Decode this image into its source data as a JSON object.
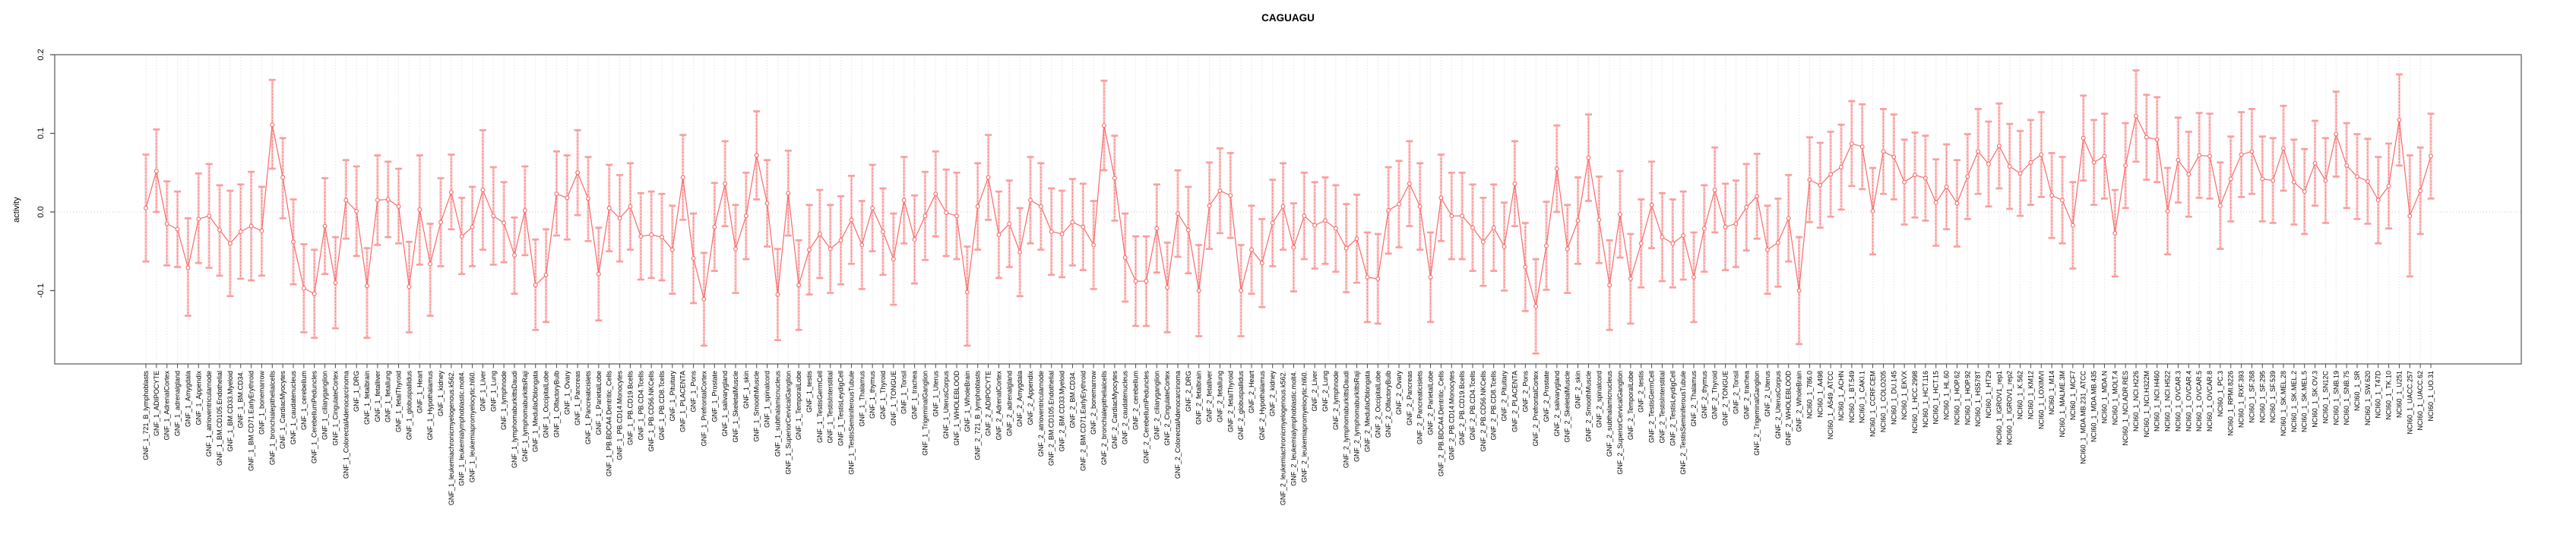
{
  "figure": {
    "title": "CAGUAGU",
    "ylabel": "activity"
  },
  "colors": {
    "series": "#f96a6a",
    "error_bar_line": "#f87878",
    "error_bar_cap": "#fb9d9d",
    "error_band": "rgba(250,130,130,0.40)",
    "grid": "#dcdcdc",
    "zero_line": "#cdcdcd",
    "box": "#808080",
    "tick": "#4a4a4a",
    "text": "#000000"
  },
  "chart_data": {
    "type": "line",
    "title": "CAGUAGU",
    "xlabel": "",
    "ylabel": "activity",
    "ylim": [
      -0.193,
      0.2
    ],
    "yticks": [
      0.2,
      0.1,
      0.0,
      -0.1
    ],
    "grid": "vertical dotted line per category plus dotted zero line",
    "legend_position": "none",
    "marker": "open-circle",
    "error_bars": true,
    "categories": [
      "GNF_1_721_B_lymphoblasts",
      "GNF_1_ADIPOCYTE",
      "GNF_1_AdrenalCortex",
      "GNF_1_adrenalgland",
      "GNF_1_Amygdala",
      "GNF_1_Appendix",
      "GNF_1_atrioventricularnode",
      "GNF_1_BM.CD105.Endothelial",
      "GNF_1_BM.CD33.Myeloid",
      "GNF_1_BM.CD34.",
      "GNF_1_BM.CD71.EarlyErythroid",
      "GNF_1_bonemarrow",
      "GNF_1_bronchialepithelialcells",
      "GNF_1_CardiacMyocytes",
      "GNF_1_caudatenucleus",
      "GNF_1_cerebellum",
      "GNF_1_CerebellumPeduncles",
      "GNF_1_ciliaryganglion",
      "GNF_1_CingulateCortex",
      "GNF_1_ColorectalAdenocarcinoma",
      "GNF_1_DRG",
      "GNF_1_fetalbrain",
      "GNF_1_fetalliver",
      "GNF_1_fetallung",
      "GNF_1_fetalThyroid",
      "GNF_1_globuspallidus",
      "GNF_1_Heart",
      "GNF_1_Hypothalamus",
      "GNF_1_kidney",
      "GNF_1_leukemiachronicmyelogenous.k562.",
      "GNF_1_leukemialymphoblastic.molt4.",
      "GNF_1_leukemiapromyelocytic.hl60.",
      "GNF_1_Liver",
      "GNF_1_Lung",
      "GNF_1_lymphnode",
      "GNF_1_lymphomaburkittsDaudi",
      "GNF_1_lymphomaburkittsRaji",
      "GNF_1_MedullaOblongata",
      "GNF_1_OccipitalLobe",
      "GNF_1_OlfactoryBulb",
      "GNF_1_Ovary",
      "GNF_1_Pancreas",
      "GNF_1_Pancreaticislets",
      "GNF_1_ParietalLobe",
      "GNF_1_PB.BDCA4.Dentritic_Cells",
      "GNF_1_PB.CD14.Monocytes",
      "GNF_1_PB.CD19.Bcells",
      "GNF_1_PB.CD4.Tcells",
      "GNF_1_PB.CD56.NKCells",
      "GNF_1_PB.CD8.Tcells",
      "GNF_1_Pituitary",
      "GNF_1_PLACENTA",
      "GNF_1_Pons",
      "GNF_1_PrefrontalCortex",
      "GNF_1_Prostate",
      "GNF_1_salivarygland",
      "GNF_1_SkeletalMuscle",
      "GNF_1_skin",
      "GNF_1_SmoothMuscle",
      "GNF_1_spinalcord",
      "GNF_1_subthalamicnucleus",
      "GNF_1_SuperiorCervicalGanglion",
      "GNF_1_TemporalLobe",
      "GNF_1_testis",
      "GNF_1_TestisGermCell",
      "GNF_1_TestisInterstitial",
      "GNF_1_TestisLeydigCell",
      "GNF_1_TestisSeminiferousTubule",
      "GNF_1_Thalamus",
      "GNF_1_thymus",
      "GNF_1_Thyroid",
      "GNF_1_TONGUE",
      "GNF_1_Tonsil",
      "GNF_1_trachea",
      "GNF_1_TrigeminalGanglion",
      "GNF_1_Uterus",
      "GNF_1_UterusCorpus",
      "GNF_1_WHOLEBLOOD",
      "GNF_1_WholeBrain",
      "GNF_2_721_B_lymphoblasts",
      "GNF_2_ADIPOCYTE",
      "GNF_2_AdrenalCortex",
      "GNF_2_adrenalgland",
      "GNF_2_Amygdala",
      "GNF_2_Appendix",
      "GNF_2_atrioventricularnode",
      "GNF_2_BM.CD105.Endothelial",
      "GNF_2_BM.CD33.Myeloid",
      "GNF_2_BM.CD34.",
      "GNF_2_BM.CD71.EarlyErythroid",
      "GNF_2_bonemarrow",
      "GNF_2_bronchialepithelialcells",
      "GNF_2_CardiacMyocytes",
      "GNF_2_caudatenucleus",
      "GNF_2_cerebellum",
      "GNF_2_CerebellumPeduncles",
      "GNF_2_ciliaryganglion",
      "GNF_2_CingulateCortex",
      "GNF_2_ColorectalAdenocarcinoma",
      "GNF_2_DRG",
      "GNF_2_fetalbrain",
      "GNF_2_fetalliver",
      "GNF_2_fetallung",
      "GNF_2_fetalThyroid",
      "GNF_2_globuspallidus",
      "GNF_2_Heart",
      "GNF_2_Hypothalamus",
      "GNF_2_kidney",
      "GNF_2_leukemiachronicmyelogenous.k562.",
      "GNF_2_leukemialymphoblastic.molt4.",
      "GNF_2_leukemiapromyelocytic.hl60.",
      "GNF_2_Liver",
      "GNF_2_Lung",
      "GNF_2_lymphnode",
      "GNF_2_lymphomaburkittsDaudi",
      "GNF_2_lymphomaburkittsRaji",
      "GNF_2_MedullaOblongata",
      "GNF_2_OccipitalLobe",
      "GNF_2_OlfactoryBulb",
      "GNF_2_Ovary",
      "GNF_2_Pancreas",
      "GNF_2_Pancreaticislets",
      "GNF_2_ParietalLobe",
      "GNF_2_PB.BDCA4.Dentritic_Cells",
      "GNF_2_PB.CD14.Monocytes",
      "GNF_2_PB.CD19.Bcells",
      "GNF_2_PB.CD4.Tcells",
      "GNF_2_PB.CD56.NKCells",
      "GNF_2_PB.CD8.Tcells",
      "GNF_2_Pituitary",
      "GNF_2_PLACENTA",
      "GNF_2_Pons",
      "GNF_2_PrefrontalCortex",
      "GNF_2_Prostate",
      "GNF_2_salivarygland",
      "GNF_2_SkeletalMuscle",
      "GNF_2_skin",
      "GNF_2_SmoothMuscle",
      "GNF_2_spinalcord",
      "GNF_2_subthalamicnucleus",
      "GNF_2_SuperiorCervicalGanglion",
      "GNF_2_TemporalLobe",
      "GNF_2_testis",
      "GNF_2_TestisGermCell",
      "GNF_2_TestisInterstitial",
      "GNF_2_TestisLeydigCell",
      "GNF_2_TestisSeminiferousTubule",
      "GNF_2_Thalamus",
      "GNF_2_thymus",
      "GNF_2_Thyroid",
      "GNF_2_TONGUE",
      "GNF_2_Tonsil",
      "GNF_2_trachea",
      "GNF_2_TrigeminalGanglion",
      "GNF_2_Uterus",
      "GNF_2_UterusCorpus",
      "GNF_2_WHOLEBLOOD",
      "GNF_2_WholeBrain",
      "NCI60_1_786.0",
      "NCI60_1_A498",
      "NCI60_1_A549_ATCC",
      "NCI60_1_ACHN",
      "NCI60_1_BT.549",
      "NCI60_1_CAKI.1",
      "NCI60_1_CCRF.CEM",
      "NCI60_1_COLO205",
      "NCI60_1_DU.145",
      "NCI60_1_EKVX",
      "NCI60_1_HCC.2998",
      "NCI60_1_HCT.116",
      "NCI60_1_HCT.15",
      "NCI60_1_HL.60",
      "NCI60_1_HOP.62",
      "NCI60_1_HOP.92",
      "NCI60_1_HS578T",
      "NCI60_1_HT29",
      "NCI60_1_IGROV1_rep1",
      "NCI60_1_IGROV1_rep2",
      "NCI60_1_K.562",
      "NCI60_1_KM12",
      "NCI60_1_LOXIMVI",
      "NCI60_1_M14",
      "NCI60_1_MALME.3M",
      "NCI60_1_MCF7",
      "NCI60_1_MDA.MB.231_ATCC",
      "NCI60_1_MDA.MB.435",
      "NCI60_1_MDA.N",
      "NCI60_1_MOLT.4",
      "NCI60_1_NCI.ADR.RES",
      "NCI60_1_NCI.H226",
      "NCI60_1_NCI.H322M",
      "NCI60_1_NCI.H460",
      "NCI60_1_NCI.H522",
      "NCI60_1_OVCAR.3",
      "NCI60_1_OVCAR.4",
      "NCI60_1_OVCAR.5",
      "NCI60_1_OVCAR.8",
      "NCI60_1_PC.3",
      "NCI60_1_RPMI.8226",
      "NCI60_1_RXF.393",
      "NCI60_1_SF.268",
      "NCI60_1_SF.295",
      "NCI60_1_SF.539",
      "NCI60_1_SK.MEL.28",
      "NCI60_1_SK.MEL.2",
      "NCI60_1_SK.MEL.5",
      "NCI60_1_SK.OV.3",
      "NCI60_1_SN12C",
      "NCI60_1_SNB.19",
      "NCI60_1_SNB.75",
      "NCI60_1_SR",
      "NCI60_1_SW.620",
      "NCI60_1_T47D",
      "NCI60_1_TK.10",
      "NCI60_1_U251",
      "NCI60_1_UACC.257",
      "NCI60_1_UACC.62",
      "NCI60_1_UO.31"
    ],
    "series": [
      {
        "name": "activity",
        "values": [
          0.005,
          0.052,
          -0.015,
          -0.022,
          -0.071,
          -0.009,
          -0.005,
          -0.023,
          -0.04,
          -0.025,
          -0.018,
          -0.024,
          0.111,
          0.044,
          -0.038,
          -0.097,
          -0.104,
          -0.018,
          -0.09,
          0.015,
          0.001,
          -0.094,
          0.015,
          0.016,
          0.007,
          -0.095,
          0.003,
          -0.066,
          -0.013,
          0.025,
          -0.031,
          -0.019,
          0.028,
          -0.005,
          -0.014,
          -0.055,
          0.002,
          -0.093,
          -0.08,
          0.023,
          0.018,
          0.05,
          0.017,
          -0.079,
          0.005,
          -0.008,
          0.007,
          -0.031,
          -0.029,
          -0.032,
          -0.048,
          0.044,
          -0.059,
          -0.111,
          -0.019,
          0.036,
          -0.047,
          -0.005,
          0.072,
          0.011,
          -0.105,
          0.024,
          -0.093,
          -0.048,
          -0.028,
          -0.047,
          -0.036,
          -0.01,
          -0.042,
          0.005,
          -0.025,
          -0.06,
          0.015,
          -0.035,
          -0.005,
          0.023,
          -0.001,
          -0.005,
          -0.102,
          0.007,
          0.044,
          -0.029,
          -0.015,
          -0.051,
          0.015,
          0.007,
          -0.025,
          -0.028,
          -0.013,
          -0.019,
          -0.042,
          0.11,
          0.043,
          -0.058,
          -0.088,
          -0.088,
          -0.021,
          -0.096,
          -0.002,
          -0.023,
          -0.1,
          0.008,
          0.027,
          0.021,
          -0.1,
          -0.048,
          -0.065,
          -0.014,
          0.007,
          -0.045,
          -0.005,
          -0.017,
          -0.011,
          -0.021,
          -0.046,
          -0.034,
          -0.083,
          -0.085,
          0.002,
          0.01,
          0.036,
          0.007,
          -0.083,
          0.018,
          -0.005,
          -0.005,
          -0.02,
          -0.038,
          -0.02,
          -0.044,
          0.036,
          -0.07,
          -0.12,
          -0.043,
          0.055,
          -0.047,
          -0.011,
          0.069,
          -0.01,
          -0.093,
          -0.003,
          -0.085,
          -0.04,
          0.009,
          -0.032,
          -0.04,
          -0.03,
          -0.083,
          -0.021,
          0.028,
          -0.019,
          -0.015,
          0.006,
          0.02,
          -0.048,
          -0.039,
          -0.008,
          -0.1,
          0.041,
          0.034,
          0.048,
          0.057,
          0.087,
          0.083,
          0.001,
          0.077,
          0.07,
          0.038,
          0.047,
          0.043,
          0.012,
          0.032,
          0.011,
          0.045,
          0.077,
          0.061,
          0.084,
          0.058,
          0.049,
          0.063,
          0.073,
          0.021,
          0.015,
          -0.017,
          0.094,
          0.063,
          0.071,
          -0.027,
          0.059,
          0.122,
          0.095,
          0.092,
          0.001,
          0.066,
          0.048,
          0.072,
          0.071,
          0.008,
          0.042,
          0.073,
          0.077,
          0.042,
          0.04,
          0.081,
          0.038,
          0.026,
          0.062,
          0.04,
          0.099,
          0.059,
          0.045,
          0.039,
          0.015,
          0.033,
          0.117,
          -0.005,
          0.027,
          0.071
        ],
        "ci_low": [
          -0.063,
          0.0,
          -0.068,
          -0.07,
          -0.132,
          -0.065,
          -0.071,
          -0.081,
          -0.107,
          -0.085,
          -0.087,
          -0.081,
          0.055,
          -0.008,
          -0.092,
          -0.153,
          -0.16,
          -0.079,
          -0.148,
          -0.034,
          -0.056,
          -0.16,
          -0.042,
          -0.032,
          -0.04,
          -0.153,
          -0.067,
          -0.132,
          -0.069,
          -0.022,
          -0.079,
          -0.069,
          -0.048,
          -0.067,
          -0.064,
          -0.104,
          -0.055,
          -0.15,
          -0.14,
          -0.03,
          -0.035,
          -0.004,
          -0.037,
          -0.138,
          -0.05,
          -0.063,
          -0.048,
          -0.086,
          -0.084,
          -0.087,
          -0.104,
          -0.01,
          -0.116,
          -0.17,
          -0.075,
          -0.018,
          -0.103,
          -0.06,
          0.016,
          -0.044,
          -0.163,
          -0.03,
          -0.15,
          -0.105,
          -0.084,
          -0.103,
          -0.092,
          -0.066,
          -0.098,
          -0.05,
          -0.08,
          -0.118,
          -0.04,
          -0.091,
          -0.061,
          -0.031,
          -0.056,
          -0.06,
          -0.17,
          -0.048,
          -0.01,
          -0.084,
          -0.07,
          -0.107,
          -0.04,
          -0.048,
          -0.08,
          -0.083,
          -0.068,
          -0.074,
          -0.098,
          0.053,
          -0.011,
          -0.114,
          -0.145,
          -0.145,
          -0.077,
          -0.153,
          -0.057,
          -0.078,
          -0.158,
          -0.047,
          -0.027,
          -0.033,
          -0.158,
          -0.104,
          -0.121,
          -0.069,
          -0.048,
          -0.101,
          -0.06,
          -0.072,
          -0.066,
          -0.076,
          -0.102,
          -0.09,
          -0.14,
          -0.142,
          -0.053,
          -0.045,
          -0.018,
          -0.048,
          -0.14,
          -0.037,
          -0.06,
          -0.06,
          -0.075,
          -0.094,
          -0.075,
          -0.1,
          -0.018,
          -0.126,
          -0.18,
          -0.099,
          0.0,
          -0.103,
          -0.066,
          0.014,
          -0.065,
          -0.15,
          -0.058,
          -0.142,
          -0.096,
          -0.046,
          -0.088,
          -0.096,
          -0.086,
          -0.14,
          -0.076,
          -0.026,
          -0.074,
          -0.07,
          -0.049,
          -0.034,
          -0.104,
          -0.095,
          -0.063,
          -0.168,
          -0.013,
          -0.02,
          -0.006,
          0.003,
          0.033,
          0.029,
          -0.054,
          0.023,
          0.016,
          -0.016,
          -0.007,
          -0.011,
          -0.043,
          -0.022,
          -0.044,
          -0.009,
          0.023,
          0.007,
          0.03,
          0.004,
          -0.005,
          0.009,
          0.019,
          -0.033,
          -0.04,
          -0.072,
          0.04,
          0.009,
          0.017,
          -0.082,
          0.005,
          0.064,
          0.041,
          0.038,
          -0.054,
          0.012,
          -0.006,
          0.018,
          0.017,
          -0.047,
          -0.012,
          0.019,
          0.023,
          -0.012,
          -0.014,
          0.027,
          -0.016,
          -0.028,
          0.008,
          -0.014,
          0.045,
          0.005,
          -0.009,
          -0.015,
          -0.04,
          -0.021,
          0.059,
          -0.082,
          -0.028,
          0.017
        ],
        "ci_high": [
          0.073,
          0.105,
          0.039,
          0.026,
          -0.008,
          0.049,
          0.061,
          0.034,
          0.027,
          0.035,
          0.051,
          0.032,
          0.168,
          0.094,
          0.016,
          -0.041,
          -0.048,
          0.043,
          -0.032,
          0.066,
          0.058,
          -0.046,
          0.072,
          0.064,
          0.055,
          -0.038,
          0.072,
          -0.015,
          0.043,
          0.073,
          0.018,
          0.032,
          0.104,
          0.057,
          0.038,
          -0.007,
          0.058,
          -0.035,
          -0.022,
          0.077,
          0.072,
          0.104,
          0.07,
          -0.02,
          0.06,
          0.047,
          0.062,
          0.024,
          0.026,
          0.023,
          0.008,
          0.098,
          -0.002,
          -0.052,
          0.037,
          0.09,
          0.009,
          0.05,
          0.128,
          0.066,
          -0.047,
          0.078,
          -0.036,
          0.009,
          0.028,
          0.009,
          0.02,
          0.046,
          0.014,
          0.06,
          0.03,
          -0.002,
          0.07,
          0.021,
          0.051,
          0.077,
          0.054,
          0.05,
          -0.044,
          0.062,
          0.098,
          0.026,
          0.04,
          0.005,
          0.07,
          0.062,
          0.03,
          0.027,
          0.042,
          0.036,
          0.014,
          0.167,
          0.097,
          -0.002,
          -0.031,
          -0.031,
          0.035,
          -0.039,
          0.053,
          0.032,
          -0.042,
          0.063,
          0.081,
          0.075,
          -0.042,
          0.008,
          -0.009,
          0.041,
          0.062,
          0.011,
          0.05,
          0.038,
          0.044,
          0.034,
          0.01,
          0.022,
          -0.026,
          -0.028,
          0.057,
          0.065,
          0.09,
          0.062,
          -0.026,
          0.073,
          0.05,
          0.05,
          0.035,
          0.018,
          0.035,
          0.012,
          0.09,
          -0.014,
          -0.06,
          0.013,
          0.11,
          0.009,
          0.044,
          0.124,
          0.045,
          -0.036,
          0.052,
          -0.028,
          0.016,
          0.064,
          0.024,
          0.016,
          0.026,
          -0.026,
          0.034,
          0.082,
          0.036,
          0.04,
          0.061,
          0.074,
          0.008,
          0.017,
          0.047,
          -0.032,
          0.095,
          0.088,
          0.102,
          0.111,
          0.141,
          0.137,
          0.056,
          0.131,
          0.124,
          0.092,
          0.101,
          0.097,
          0.067,
          0.086,
          0.066,
          0.099,
          0.131,
          0.115,
          0.138,
          0.112,
          0.103,
          0.117,
          0.127,
          0.075,
          0.07,
          0.038,
          0.148,
          0.117,
          0.125,
          0.028,
          0.113,
          0.18,
          0.149,
          0.146,
          0.056,
          0.12,
          0.102,
          0.126,
          0.125,
          0.063,
          0.096,
          0.127,
          0.131,
          0.096,
          0.094,
          0.135,
          0.092,
          0.08,
          0.116,
          0.094,
          0.153,
          0.113,
          0.099,
          0.093,
          0.07,
          0.087,
          0.175,
          0.072,
          0.082,
          0.125
        ]
      }
    ]
  }
}
